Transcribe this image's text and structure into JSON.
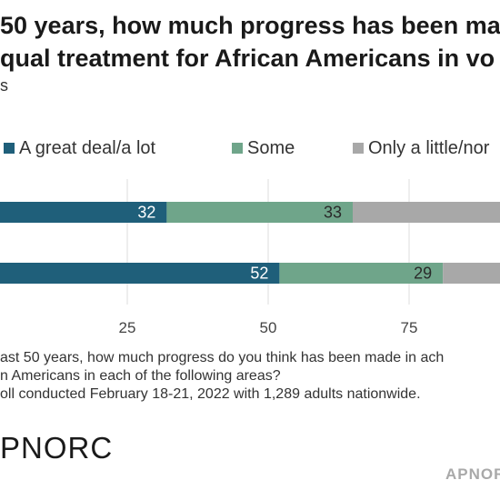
{
  "header": {
    "title_line1": "50 years, how much progress has been ma",
    "title_line2": "qual treatment for African Americans in vo",
    "subtitle": "s"
  },
  "legend": [
    {
      "label": "A great deal/a lot",
      "color": "#1f5f7a"
    },
    {
      "label": "Some",
      "color": "#6fa58a"
    },
    {
      "label": "Only a little/nor",
      "color": "#a8a8a8"
    }
  ],
  "chart_data": {
    "type": "bar",
    "orientation": "horizontal",
    "stacked": true,
    "categories": [
      "",
      ""
    ],
    "series": [
      {
        "name": "A great deal/a lot",
        "values": [
          32,
          52
        ]
      },
      {
        "name": "Some",
        "values": [
          33,
          29
        ]
      },
      {
        "name": "Only a little/nor",
        "values": [
          null,
          null
        ]
      }
    ],
    "x_ticks": [
      25,
      50,
      75
    ],
    "xlim": [
      15,
      88
    ],
    "grid": true,
    "legend_position": "top"
  },
  "note": {
    "line1": "ast 50 years, how much progress do you think has been made in ach",
    "line2": "n Americans in each of the following areas?",
    "line3": "oll conducted February 18-21, 2022 with 1,289 adults nationwide."
  },
  "branding": {
    "logo": "PNORC",
    "credit": "APNOR"
  }
}
